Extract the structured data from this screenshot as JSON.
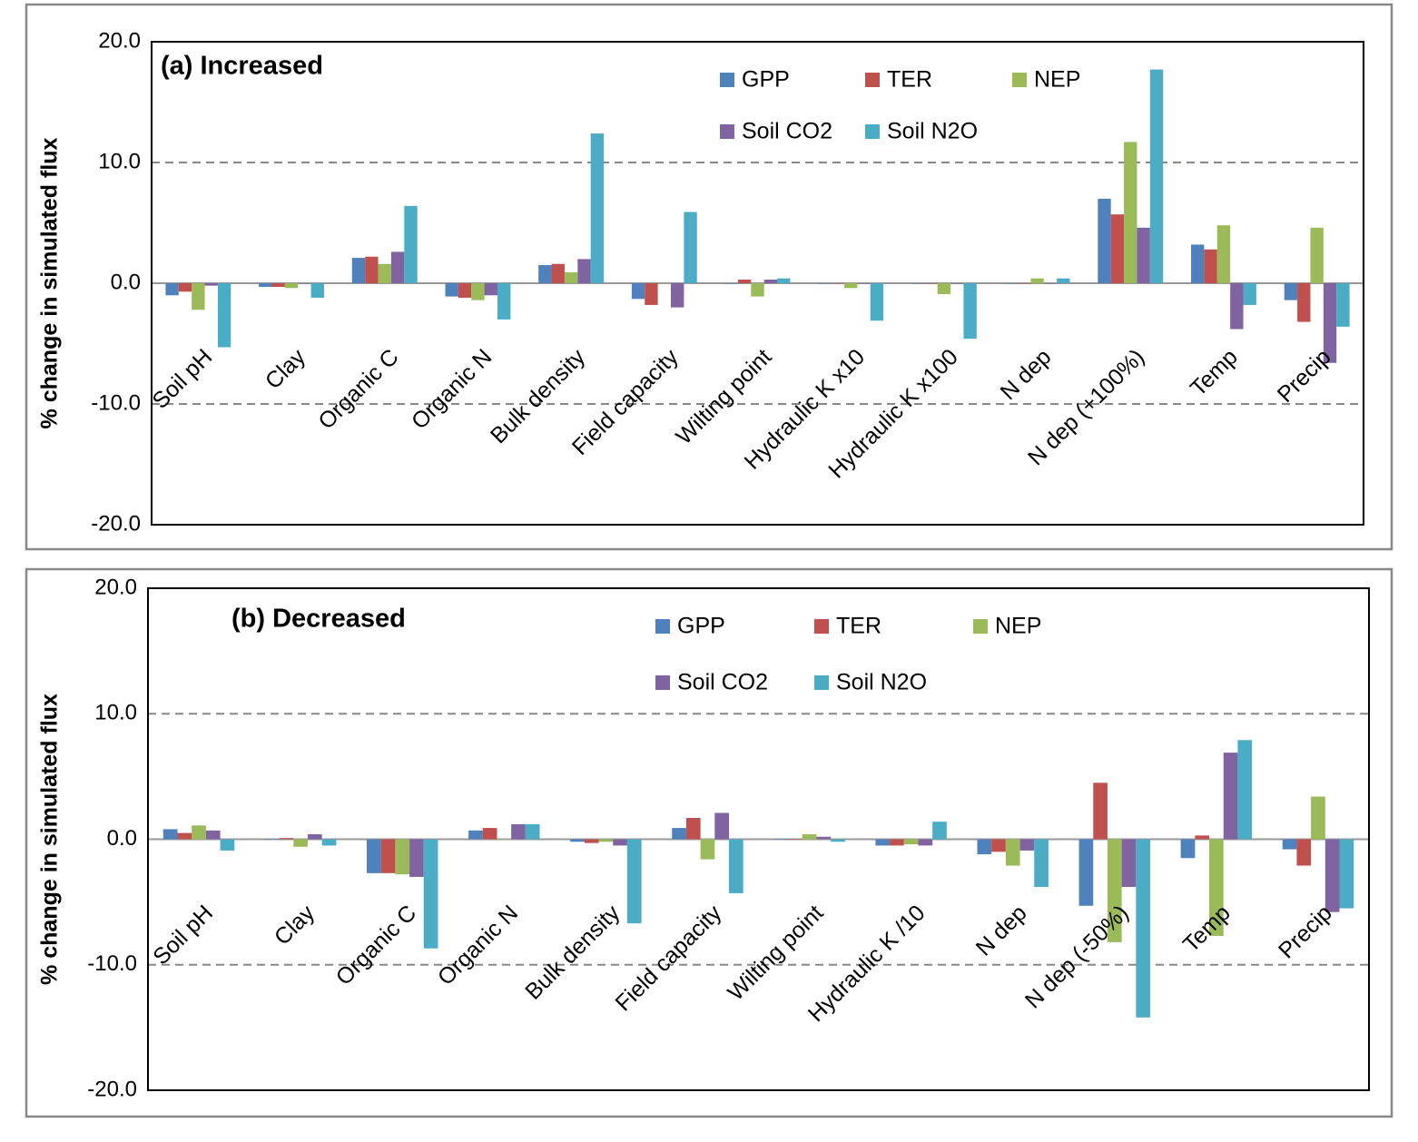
{
  "chart_data": [
    {
      "type": "bar",
      "title": "(a) Increased",
      "y_label": "% change in simulated flux",
      "categories": [
        "Soil pH",
        "Clay",
        "Organic C",
        "Organic N",
        "Bulk density",
        "Field capacity",
        "Wilting point",
        "Hydraulic K x10",
        "Hydraulic K x100",
        "N dep",
        "N dep (+100%)",
        "Temp",
        "Precip"
      ],
      "series": [
        {
          "name": "GPP",
          "color": "#4f81bd",
          "values": [
            -1.0,
            -0.3,
            2.1,
            -1.1,
            1.5,
            -1.3,
            0,
            0,
            0,
            0,
            7.0,
            3.2,
            -1.4
          ]
        },
        {
          "name": "TER",
          "color": "#c0504d",
          "values": [
            -0.7,
            -0.3,
            2.2,
            -1.2,
            1.6,
            -1.8,
            0.3,
            0,
            0,
            0,
            5.7,
            2.8,
            -3.2
          ]
        },
        {
          "name": "NEP",
          "color": "#9bbb59",
          "values": [
            -2.2,
            -0.4,
            1.6,
            -1.4,
            0.9,
            0,
            -1.1,
            -0.4,
            -0.9,
            0.4,
            11.7,
            4.8,
            4.6
          ]
        },
        {
          "name": "Soil CO2",
          "color": "#8064a2",
          "values": [
            -0.2,
            0,
            2.6,
            -1.0,
            2.0,
            -2.0,
            0.3,
            0,
            0,
            0,
            4.6,
            -3.8,
            -6.6
          ]
        },
        {
          "name": "Soil N2O",
          "color": "#4bacc6",
          "values": [
            -5.3,
            -1.2,
            6.4,
            -3.0,
            12.4,
            5.9,
            0.4,
            -3.1,
            -4.6,
            0.4,
            17.7,
            -1.8,
            -3.6
          ]
        }
      ],
      "ylim": [
        -20,
        20
      ],
      "yticks": [
        {
          "value": 20,
          "label": "20.0"
        },
        {
          "value": 10,
          "label": "10.0"
        },
        {
          "value": 0,
          "label": "0.0"
        },
        {
          "value": -10,
          "label": "-10.0"
        },
        {
          "value": -20,
          "label": "-20.0"
        }
      ],
      "grid": true
    },
    {
      "type": "bar",
      "title": "(b) Decreased",
      "y_label": "% change in simulated flux",
      "categories": [
        "Soil pH",
        "Clay",
        "Organic C",
        "Organic N",
        "Bulk density",
        "Field capacity",
        "Wilting point",
        "Hydraulic K /10",
        "N dep",
        "N dep (-50%)",
        "Temp",
        "Precip"
      ],
      "series": [
        {
          "name": "GPP",
          "color": "#4f81bd",
          "values": [
            0.8,
            0,
            -2.7,
            0.7,
            -0.2,
            0.9,
            0,
            -0.5,
            -1.2,
            -5.3,
            -1.5,
            -0.8
          ]
        },
        {
          "name": "TER",
          "color": "#c0504d",
          "values": [
            0.5,
            0.1,
            -2.7,
            0.9,
            -0.3,
            1.7,
            0,
            -0.5,
            -1.0,
            4.5,
            0.3,
            -2.1
          ]
        },
        {
          "name": "NEP",
          "color": "#9bbb59",
          "values": [
            1.1,
            -0.6,
            -2.8,
            0,
            -0.2,
            -1.6,
            0.4,
            -0.4,
            -2.1,
            -8.2,
            -7.7,
            3.4
          ]
        },
        {
          "name": "Soil CO2",
          "color": "#8064a2",
          "values": [
            0.7,
            0.4,
            -3.0,
            1.2,
            -0.5,
            2.1,
            0.2,
            -0.5,
            -0.9,
            -3.8,
            6.9,
            -5.8
          ]
        },
        {
          "name": "Soil N2O",
          "color": "#4bacc6",
          "values": [
            -0.9,
            -0.5,
            -8.7,
            1.2,
            -6.7,
            -4.3,
            -0.2,
            1.4,
            -3.8,
            -14.2,
            7.9,
            -5.5
          ]
        }
      ],
      "ylim": [
        -20,
        20
      ],
      "yticks": [
        {
          "value": 20,
          "label": "20.0"
        },
        {
          "value": 10,
          "label": "10.0"
        },
        {
          "value": 0,
          "label": "0.0"
        },
        {
          "value": -10,
          "label": "-10.0"
        },
        {
          "value": -20,
          "label": "-20.0"
        }
      ],
      "grid": true
    }
  ]
}
